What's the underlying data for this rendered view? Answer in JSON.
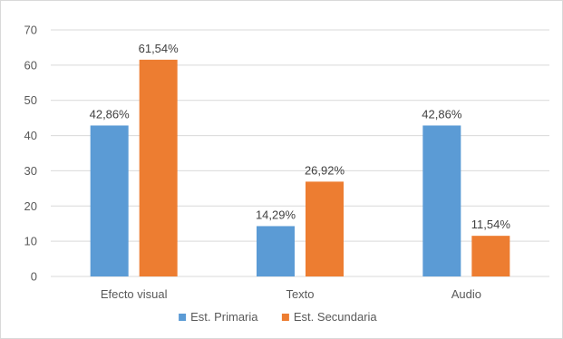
{
  "chart_data": {
    "type": "bar",
    "categories": [
      "Efecto visual",
      "Texto",
      "Audio"
    ],
    "series": [
      {
        "name": "Est. Primaria",
        "values": [
          42.86,
          14.29,
          42.86
        ],
        "labels": [
          "42,86%",
          "14,29%",
          "42,86%"
        ],
        "color": "#5b9bd5"
      },
      {
        "name": "Est. Secundaria",
        "values": [
          61.54,
          26.92,
          11.54
        ],
        "labels": [
          "61,54%",
          "26,92%",
          "11,54%"
        ],
        "color": "#ed7d31"
      }
    ],
    "title": "",
    "xlabel": "",
    "ylabel": "",
    "ylim": [
      0,
      70
    ],
    "yticks": [
      0,
      10,
      20,
      30,
      40,
      50,
      60,
      70
    ],
    "grid": true,
    "legend_position": "bottom"
  }
}
